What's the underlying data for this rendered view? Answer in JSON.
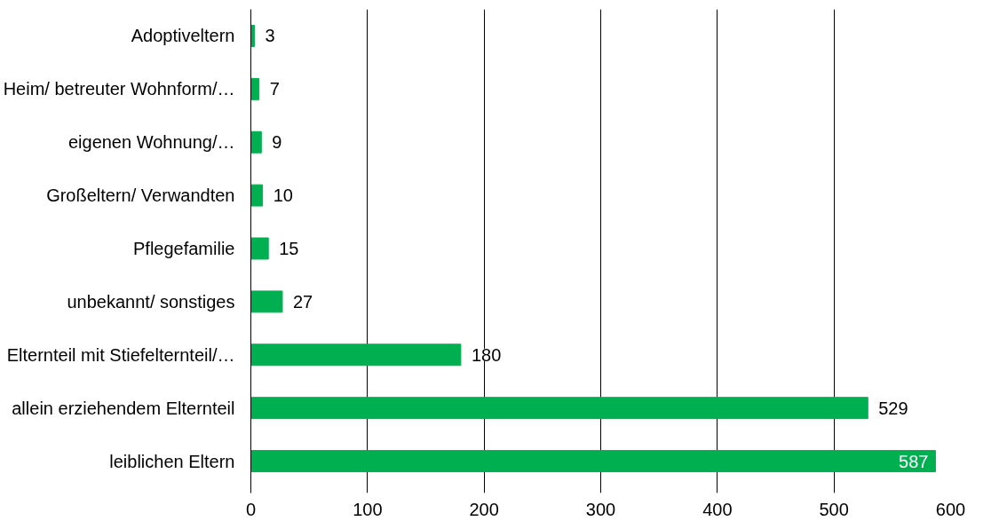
{
  "chart_data": {
    "type": "bar",
    "orientation": "horizontal",
    "categories": [
      "Adoptiveltern",
      "Heim/ betreuter Wohnform/…",
      "eigenen Wohnung/…",
      "Großeltern/ Verwandten",
      "Pflegefamilie",
      "unbekannt/ sonstiges",
      "Elternteil mit Stiefelternteil/…",
      "allein erziehendem Elternteil",
      "leiblichen Eltern"
    ],
    "values": [
      3,
      7,
      9,
      10,
      15,
      27,
      180,
      529,
      587
    ],
    "color": "#00b050",
    "xlim": [
      0,
      600
    ],
    "xticks": [
      0,
      100,
      200,
      300,
      400,
      500,
      600
    ],
    "grid": "x",
    "data_labels": true
  }
}
